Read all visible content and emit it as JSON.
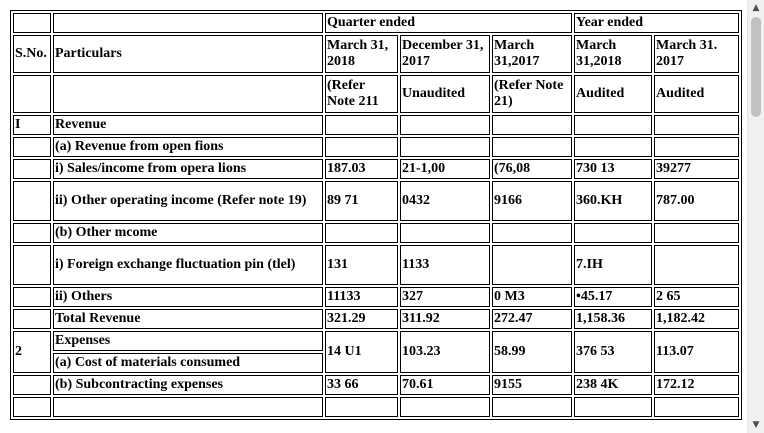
{
  "header": {
    "quarter_ended": "Quarter ended",
    "year_ended": "Year ended",
    "sno": "S.No.",
    "particulars": "Particulars",
    "col1_date": "March 31, 2018",
    "col2_date": "December 31, 2017",
    "col3_date": "March 31,2017",
    "col4_date": "March 31,2018",
    "col5_date": "March 31. 2017",
    "col1_note": "(Refer Note 211",
    "col2_note": "Unaudited",
    "col3_note": "(Refer Note 21)",
    "col4_note": "Audited",
    "col5_note": "Audited"
  },
  "rows": [
    {
      "sno": "I",
      "label": "Revenue",
      "v": [
        "",
        "",
        "",
        "",
        ""
      ]
    },
    {
      "sno": "",
      "label": "(a) Revenue from open fions",
      "v": [
        "",
        "",
        "",
        "",
        ""
      ]
    },
    {
      "sno": "",
      "label": "i) Sales/income from opera lions",
      "v": [
        "187.03",
        "21-1,00",
        "(76,08",
        "730 13",
        "39277"
      ]
    },
    {
      "sno": "",
      "label": "ii) Other operating income (Refer note 19)",
      "v": [
        "89 71",
        "0432",
        "9166",
        "360.KH",
        "787.00"
      ]
    },
    {
      "sno": "",
      "label": "(b) Other mcome",
      "v": [
        "",
        "",
        "",
        "",
        ""
      ]
    },
    {
      "sno": "",
      "label": "i) Foreign exchange fluctuation pin (tlel)",
      "v": [
        "131",
        "1133",
        "",
        "7.IH",
        ""
      ]
    },
    {
      "sno": "",
      "label": "ii) Others",
      "v": [
        "11133",
        "327",
        "0 M3",
        "•45.17",
        "2 65"
      ]
    },
    {
      "sno": "",
      "label": "Total Revenue",
      "v": [
        "321.29",
        "311.92",
        "272.47",
        "1,158.36",
        "1,182.42"
      ]
    }
  ],
  "expenses": {
    "sno": "2",
    "label": "Expenses",
    "items": [
      {
        "label": "(a) Cost of materials consumed",
        "v": [
          "14 U1",
          "103.23",
          "58.99",
          "376 53",
          "113.07"
        ]
      },
      {
        "label": "(b) Subcontracting expenses",
        "v": [
          "33 66",
          "70.61",
          "9155",
          "238 4K",
          "172.12"
        ]
      }
    ]
  },
  "scrollbar": {
    "up_icon": "▲",
    "down_icon": "▼",
    "position_fraction": 0.0
  }
}
